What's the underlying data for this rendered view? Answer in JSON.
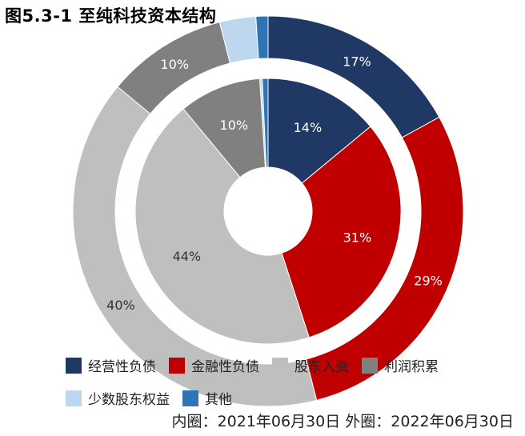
{
  "title": "图5.3-1 至纯科技资本结构",
  "caption": "内圈：2021年06月30日 外圈：2022年06月30日",
  "chart_data": {
    "type": "donut",
    "categories": [
      "经营性负债",
      "金融性负债",
      "股东入资",
      "利润积累",
      "少数股东权益",
      "其他"
    ],
    "colors": [
      "#1f3864",
      "#c00000",
      "#bfbfbf",
      "#808080",
      "#bdd7ee",
      "#2e75b6"
    ],
    "series": [
      {
        "name": "2021年06月30日",
        "ring": "inner",
        "values": [
          14,
          31,
          44,
          10,
          0.3,
          0.7
        ],
        "labels": [
          "14%",
          "31%",
          "44%",
          "10%",
          "",
          ""
        ]
      },
      {
        "name": "2022年06月30日",
        "ring": "outer",
        "values": [
          17,
          29,
          40,
          10,
          3,
          1
        ],
        "labels": [
          "17%",
          "29%",
          "40%",
          "10%",
          "",
          ""
        ]
      }
    ],
    "legend_position": "bottom"
  }
}
